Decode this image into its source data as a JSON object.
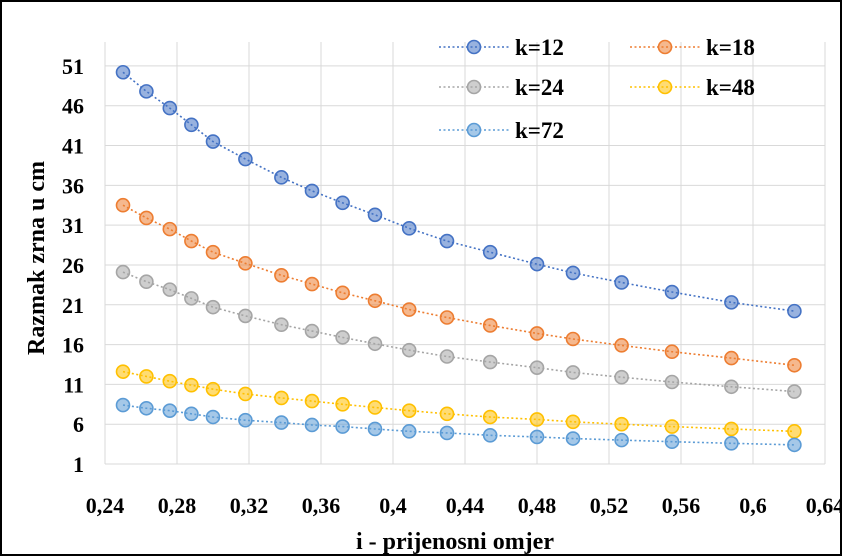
{
  "chart_data": {
    "type": "scatter",
    "xlabel": "i - prijenosni omjer",
    "ylabel": "Razmak zrna u cm",
    "xlim": [
      0.24,
      0.64
    ],
    "ylim": [
      1,
      54
    ],
    "x_ticks": [
      "0,24",
      "0,28",
      "0,32",
      "0,36",
      "0,4",
      "0,44",
      "0,48",
      "0,52",
      "0,56",
      "0,6",
      "0,64"
    ],
    "y_ticks": [
      "1",
      "6",
      "11",
      "16",
      "21",
      "26",
      "31",
      "36",
      "41",
      "46",
      "51"
    ],
    "grid": "vertical and horizontal, light gray",
    "legend_position": "top-right",
    "x": [
      0.25,
      0.263,
      0.276,
      0.288,
      0.3,
      0.318,
      0.338,
      0.355,
      0.372,
      0.39,
      0.409,
      0.43,
      0.454,
      0.48,
      0.5,
      0.527,
      0.555,
      0.588,
      0.623
    ],
    "series": [
      {
        "name": "k=12",
        "color": "#4472C4",
        "values": [
          50.2,
          47.8,
          45.7,
          43.6,
          41.5,
          39.3,
          37.0,
          35.3,
          33.8,
          32.3,
          30.6,
          29.0,
          27.6,
          26.1,
          25.0,
          23.8,
          22.6,
          21.3,
          20.2
        ]
      },
      {
        "name": "k=18",
        "color": "#ED7D31",
        "values": [
          33.5,
          31.9,
          30.5,
          29.0,
          27.6,
          26.2,
          24.7,
          23.6,
          22.5,
          21.5,
          20.4,
          19.4,
          18.4,
          17.4,
          16.7,
          15.9,
          15.1,
          14.3,
          13.4
        ]
      },
      {
        "name": "k=24",
        "color": "#A5A5A5",
        "values": [
          25.1,
          23.9,
          22.9,
          21.8,
          20.7,
          19.6,
          18.5,
          17.7,
          16.9,
          16.1,
          15.3,
          14.5,
          13.8,
          13.1,
          12.5,
          11.9,
          11.3,
          10.7,
          10.1
        ]
      },
      {
        "name": "k=48",
        "color": "#FFC000",
        "values": [
          12.6,
          12.0,
          11.4,
          10.9,
          10.4,
          9.8,
          9.3,
          8.9,
          8.5,
          8.1,
          7.7,
          7.3,
          6.9,
          6.6,
          6.3,
          6.0,
          5.7,
          5.4,
          5.1
        ]
      },
      {
        "name": "k=72",
        "color": "#5B9BD5",
        "values": [
          8.4,
          8.0,
          7.7,
          7.3,
          6.9,
          6.5,
          6.2,
          5.9,
          5.7,
          5.4,
          5.1,
          4.9,
          4.6,
          4.4,
          4.2,
          4.0,
          3.8,
          3.6,
          3.4
        ]
      }
    ]
  }
}
